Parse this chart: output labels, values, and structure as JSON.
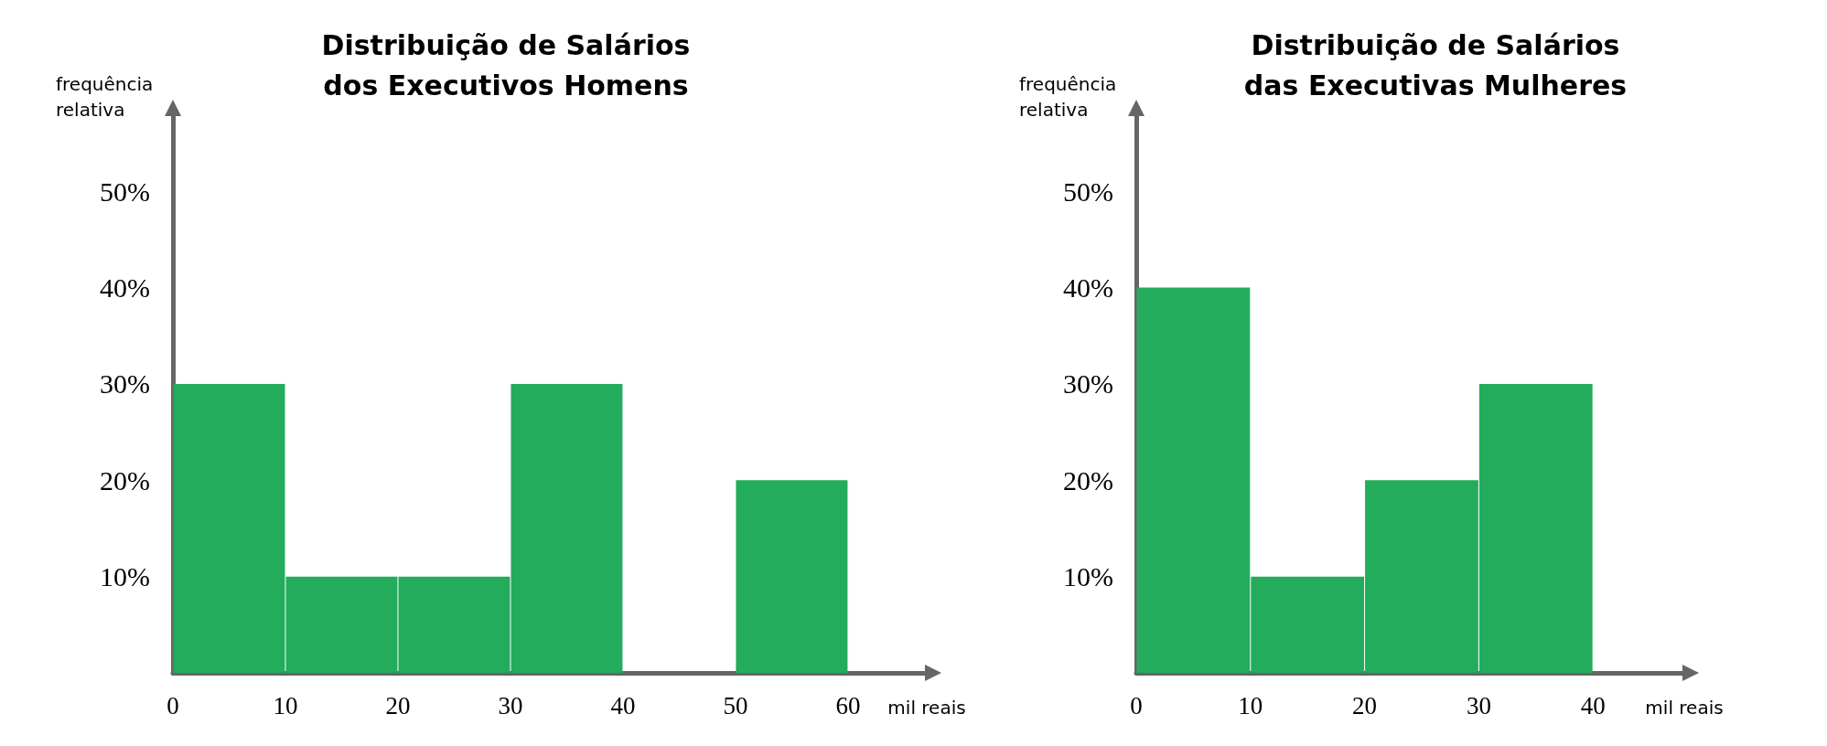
{
  "chart_data": [
    {
      "type": "histogram",
      "title": "Distribuição de Salários\ndos Executivos Homens",
      "xlabel": "mil reais",
      "ylabel": "frequência relativa",
      "bins": [
        0,
        10,
        20,
        30,
        40,
        50,
        60
      ],
      "values": [
        30,
        10,
        10,
        30,
        0,
        20
      ],
      "color": "#22ac5c",
      "xlim": [
        0,
        67
      ],
      "xticks": [
        0,
        10,
        20,
        30,
        40,
        50,
        60
      ],
      "ylim": [
        0,
        58
      ],
      "yticks": [
        {
          "value": 10,
          "label": "10%"
        },
        {
          "value": 20,
          "label": "20%"
        },
        {
          "value": 30,
          "label": "30%"
        },
        {
          "value": 40,
          "label": "40%"
        },
        {
          "value": 50,
          "label": "50%"
        }
      ],
      "grid": false
    },
    {
      "type": "histogram",
      "title": "Distribuição de Salários\ndas Executivas Mulheres",
      "xlabel": "mil reais",
      "ylabel": "frequência relativa",
      "bins": [
        0,
        10,
        20,
        30,
        40
      ],
      "values": [
        40,
        10,
        20,
        30
      ],
      "color": "#22ac5c",
      "xlim": [
        0,
        48
      ],
      "xticks": [
        0,
        10,
        20,
        30,
        40
      ],
      "ylim": [
        0,
        58
      ],
      "yticks": [
        {
          "value": 10,
          "label": "10%"
        },
        {
          "value": 20,
          "label": "20%"
        },
        {
          "value": 30,
          "label": "30%"
        },
        {
          "value": 40,
          "label": "40%"
        },
        {
          "value": 50,
          "label": "50%"
        }
      ],
      "grid": false
    }
  ]
}
